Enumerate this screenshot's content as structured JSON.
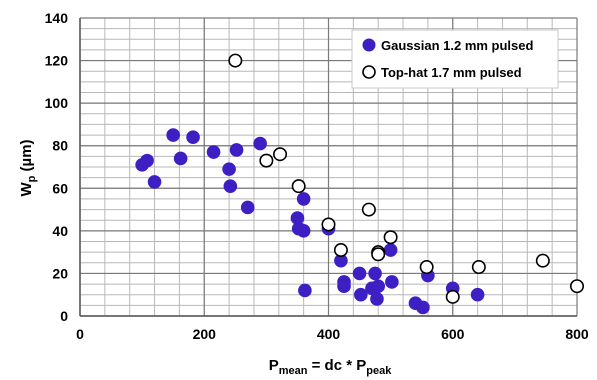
{
  "chart_data": {
    "type": "scatter",
    "title": "",
    "xlabel_main": "P",
    "xlabel_sub1": "mean",
    "xlabel_mid": " = dc * P",
    "xlabel_sub2": "peak",
    "ylabel_main": "W",
    "ylabel_sub": "p",
    "ylabel_rest": " (µm)",
    "xlim": [
      0,
      800
    ],
    "ylim": [
      0,
      140
    ],
    "xticks": [
      0,
      200,
      400,
      600,
      800
    ],
    "yticks": [
      0,
      20,
      40,
      60,
      80,
      100,
      120,
      140
    ],
    "grid": true,
    "legend_position": "top-right",
    "series": [
      {
        "name": "Gaussian 1.2 mm pulsed",
        "marker": "filled-circle",
        "color": "#3d1fc4",
        "points": [
          [
            100,
            71
          ],
          [
            108,
            73
          ],
          [
            120,
            63
          ],
          [
            150,
            85
          ],
          [
            162,
            74
          ],
          [
            182,
            84
          ],
          [
            215,
            77
          ],
          [
            240,
            69
          ],
          [
            242,
            61
          ],
          [
            252,
            78
          ],
          [
            270,
            51
          ],
          [
            290,
            81
          ],
          [
            350,
            46
          ],
          [
            352,
            41
          ],
          [
            360,
            40
          ],
          [
            360,
            55
          ],
          [
            362,
            12
          ],
          [
            400,
            41
          ],
          [
            420,
            26
          ],
          [
            425,
            16
          ],
          [
            425,
            14
          ],
          [
            450,
            20
          ],
          [
            452,
            10
          ],
          [
            470,
            13
          ],
          [
            475,
            20
          ],
          [
            478,
            8
          ],
          [
            480,
            14
          ],
          [
            480,
            29
          ],
          [
            500,
            31
          ],
          [
            502,
            16
          ],
          [
            540,
            6
          ],
          [
            552,
            4
          ],
          [
            560,
            19
          ],
          [
            600,
            13
          ],
          [
            640,
            10
          ]
        ]
      },
      {
        "name": "Top-hat 1.7 mm pulsed",
        "marker": "open-circle",
        "color": "#000000",
        "points": [
          [
            250,
            120
          ],
          [
            300,
            73
          ],
          [
            322,
            76
          ],
          [
            352,
            61
          ],
          [
            400,
            43
          ],
          [
            420,
            31
          ],
          [
            465,
            50
          ],
          [
            480,
            30
          ],
          [
            480,
            29
          ],
          [
            500,
            37
          ],
          [
            558,
            23
          ],
          [
            600,
            9
          ],
          [
            642,
            23
          ],
          [
            745,
            26
          ],
          [
            800,
            14
          ]
        ]
      }
    ]
  }
}
